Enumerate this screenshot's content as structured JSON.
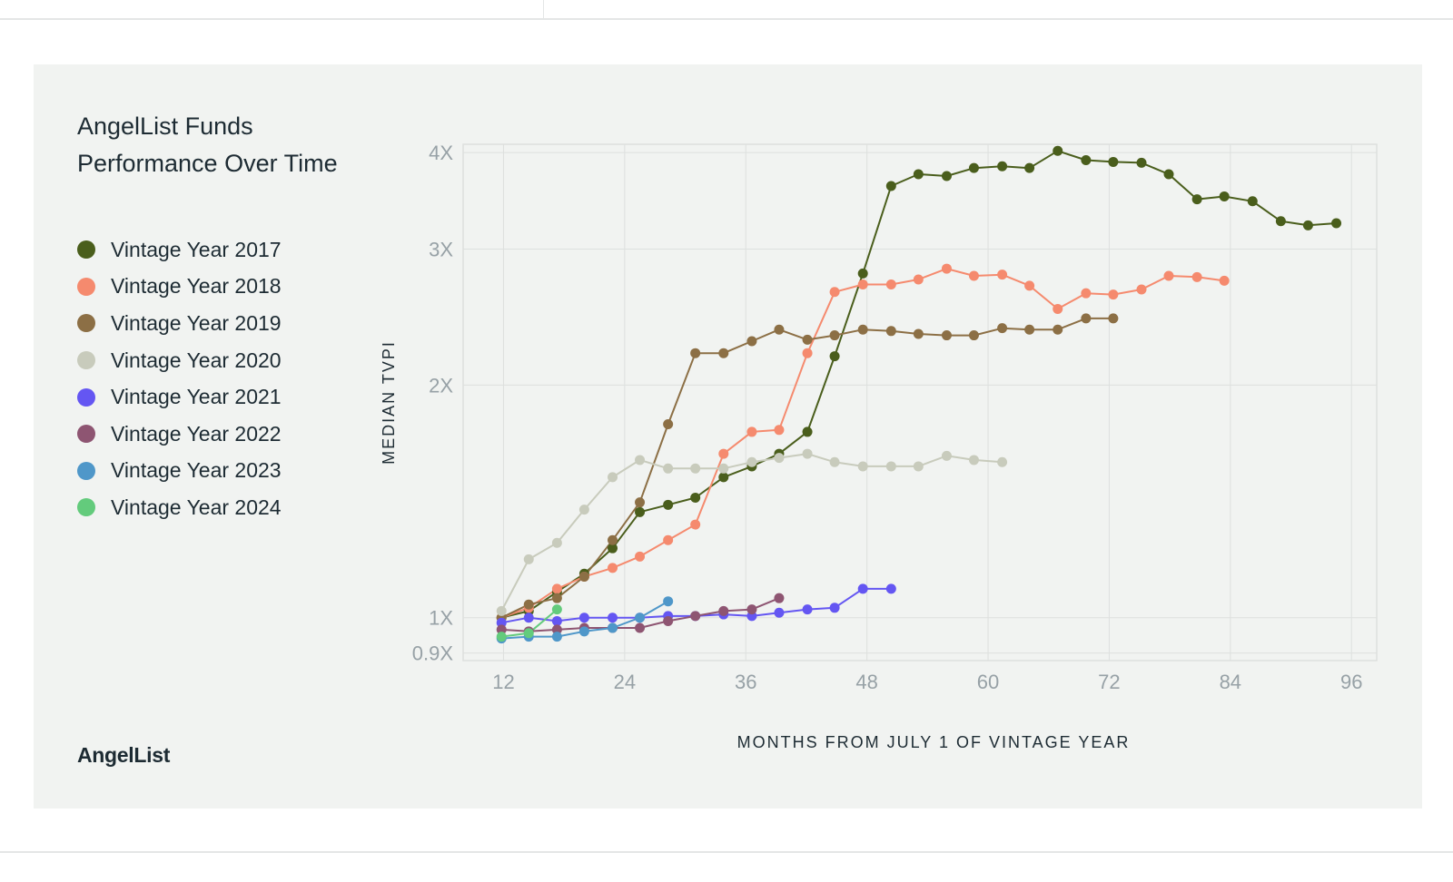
{
  "chart_data": {
    "type": "line",
    "title_lines": [
      "AngelList Funds",
      "Performance Over Time"
    ],
    "brand": "AngelList",
    "xlabel": "MONTHS FROM JULY 1 OF VINTAGE YEAR",
    "ylabel": "MEDIAN TVPI",
    "x_ticks": [
      12,
      24,
      36,
      48,
      60,
      72,
      84,
      96
    ],
    "x_tick_labels": [
      "12",
      "24",
      "36",
      "48",
      "60",
      "72",
      "84",
      "96"
    ],
    "y_ticks": [
      0.9,
      1,
      2,
      3,
      4
    ],
    "y_tick_labels": [
      "0.9X",
      "1X",
      "2X",
      "3X",
      "4X"
    ],
    "xlim": [
      8,
      98.5
    ],
    "ylim": [
      0.88,
      4.1
    ],
    "y_scale": "log",
    "grid": true,
    "legend_position": "left",
    "series": [
      {
        "name": "Vintage Year 2017",
        "color": "#4a5e1c",
        "x": [
          11.8,
          14.5,
          17.3,
          20.0,
          22.8,
          25.5,
          28.3,
          31.0,
          33.8,
          36.6,
          39.3,
          42.1,
          44.8,
          47.6,
          50.4,
          53.1,
          55.9,
          58.6,
          61.4,
          64.1,
          66.9,
          69.7,
          72.4,
          75.2,
          77.9,
          80.7,
          83.4,
          86.2,
          89.0,
          91.7,
          94.5
        ],
        "y": [
          1.0,
          1.02,
          1.08,
          1.14,
          1.23,
          1.37,
          1.4,
          1.43,
          1.52,
          1.57,
          1.63,
          1.74,
          2.18,
          2.79,
          3.62,
          3.75,
          3.73,
          3.82,
          3.84,
          3.82,
          4.02,
          3.91,
          3.89,
          3.88,
          3.75,
          3.48,
          3.51,
          3.46,
          3.26,
          3.22,
          3.24
        ]
      },
      {
        "name": "Vintage Year 2018",
        "color": "#f58a6e",
        "x": [
          11.8,
          14.5,
          17.3,
          20.0,
          22.8,
          25.5,
          28.3,
          31.0,
          33.8,
          36.6,
          39.3,
          42.1,
          44.8,
          47.6,
          50.4,
          53.1,
          55.9,
          58.6,
          61.4,
          64.1,
          66.9,
          69.7,
          72.4,
          75.2,
          77.9,
          80.7,
          83.4
        ],
        "y": [
          1.0,
          1.03,
          1.09,
          1.13,
          1.16,
          1.2,
          1.26,
          1.32,
          1.63,
          1.74,
          1.75,
          2.2,
          2.64,
          2.7,
          2.7,
          2.74,
          2.83,
          2.77,
          2.78,
          2.69,
          2.51,
          2.63,
          2.62,
          2.66,
          2.77,
          2.76,
          2.73
        ]
      },
      {
        "name": "Vintage Year 2019",
        "color": "#8c6f45",
        "x": [
          11.8,
          14.5,
          17.3,
          20.0,
          22.8,
          25.5,
          28.3,
          31.0,
          33.8,
          36.6,
          39.3,
          42.1,
          44.8,
          47.6,
          50.4,
          53.1,
          55.9,
          58.6,
          61.4,
          64.1,
          66.9,
          69.7,
          72.4
        ],
        "y": [
          1.0,
          1.04,
          1.06,
          1.13,
          1.26,
          1.41,
          1.78,
          2.2,
          2.2,
          2.28,
          2.36,
          2.29,
          2.32,
          2.36,
          2.35,
          2.33,
          2.32,
          2.32,
          2.37,
          2.36,
          2.36,
          2.44,
          2.44
        ]
      },
      {
        "name": "Vintage Year 2020",
        "color": "#c8cbbc",
        "x": [
          11.8,
          14.5,
          17.3,
          20.0,
          22.8,
          25.5,
          28.3,
          31.0,
          33.8,
          36.6,
          39.3,
          42.1,
          44.8,
          47.6,
          50.4,
          53.1,
          55.9,
          58.6,
          61.4
        ],
        "y": [
          1.02,
          1.19,
          1.25,
          1.38,
          1.52,
          1.6,
          1.56,
          1.56,
          1.56,
          1.59,
          1.61,
          1.63,
          1.59,
          1.57,
          1.57,
          1.57,
          1.62,
          1.6,
          1.59
        ]
      },
      {
        "name": "Vintage Year 2021",
        "color": "#6456f2",
        "x": [
          11.8,
          14.5,
          17.3,
          20.0,
          22.8,
          25.5,
          28.3,
          31.0,
          33.8,
          36.6,
          39.3,
          42.1,
          44.8,
          47.6,
          50.4
        ],
        "y": [
          0.985,
          1.0,
          0.99,
          1.0,
          1.0,
          1.0,
          1.005,
          1.005,
          1.01,
          1.005,
          1.015,
          1.025,
          1.03,
          1.09,
          1.09
        ]
      },
      {
        "name": "Vintage Year 2022",
        "color": "#8e5572",
        "x": [
          11.8,
          14.5,
          17.3,
          20.0,
          22.8,
          25.5,
          28.3,
          31.0,
          33.8,
          36.6,
          39.3
        ],
        "y": [
          0.965,
          0.96,
          0.965,
          0.97,
          0.97,
          0.97,
          0.99,
          1.005,
          1.02,
          1.025,
          1.06
        ]
      },
      {
        "name": "Vintage Year 2023",
        "color": "#4f97c9",
        "x": [
          11.8,
          14.5,
          17.3,
          20.0,
          22.8,
          25.5,
          28.3
        ],
        "y": [
          0.94,
          0.945,
          0.945,
          0.96,
          0.97,
          1.0,
          1.05
        ]
      },
      {
        "name": "Vintage Year 2024",
        "color": "#63cb7c",
        "x": [
          11.8,
          14.5,
          17.3
        ],
        "y": [
          0.945,
          0.955,
          1.025
        ]
      }
    ]
  }
}
